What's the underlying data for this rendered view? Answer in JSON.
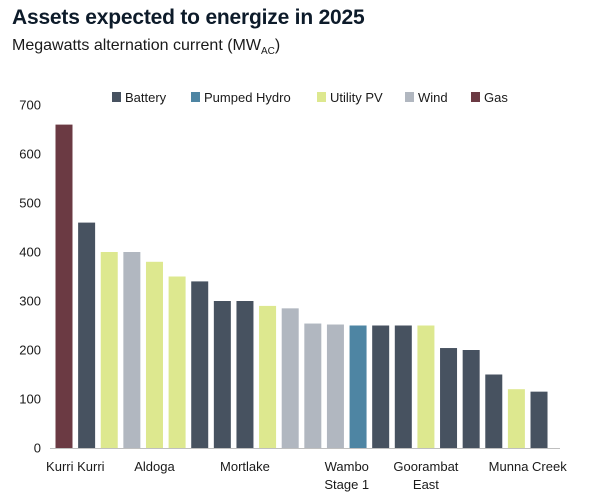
{
  "title": "Assets expected to energize in 2025",
  "subtitle_main": "Megawatts alternation current (MW",
  "subtitle_sub": "AC",
  "subtitle_end": ")",
  "colors": {
    "Battery": "#475260",
    "Pumped Hydro": "#4e85a3",
    "Utility PV": "#dde88f",
    "Wind": "#b1b7c0",
    "Gas": "#6b3a43"
  },
  "chart_data": {
    "type": "bar",
    "title": "Assets expected to energize in 2025",
    "subtitle": "Megawatts alternation current (MWAC)",
    "ylim": [
      0,
      700
    ],
    "yticks": [
      0,
      100,
      200,
      300,
      400,
      500,
      600,
      700
    ],
    "grid": false,
    "legend_position": "top",
    "legend": [
      "Battery",
      "Pumped Hydro",
      "Utility PV",
      "Wind",
      "Gas"
    ],
    "bars": [
      {
        "value": 660,
        "type": "Gas"
      },
      {
        "value": 460,
        "type": "Battery"
      },
      {
        "value": 400,
        "type": "Utility PV"
      },
      {
        "value": 400,
        "type": "Wind"
      },
      {
        "value": 380,
        "type": "Utility PV"
      },
      {
        "value": 350,
        "type": "Utility PV"
      },
      {
        "value": 340,
        "type": "Battery"
      },
      {
        "value": 300,
        "type": "Battery"
      },
      {
        "value": 300,
        "type": "Battery"
      },
      {
        "value": 290,
        "type": "Utility PV"
      },
      {
        "value": 285,
        "type": "Wind"
      },
      {
        "value": 254,
        "type": "Wind"
      },
      {
        "value": 252,
        "type": "Wind"
      },
      {
        "value": 250,
        "type": "Pumped Hydro"
      },
      {
        "value": 250,
        "type": "Battery"
      },
      {
        "value": 250,
        "type": "Battery"
      },
      {
        "value": 250,
        "type": "Utility PV"
      },
      {
        "value": 204,
        "type": "Battery"
      },
      {
        "value": 200,
        "type": "Battery"
      },
      {
        "value": 150,
        "type": "Battery"
      },
      {
        "value": 120,
        "type": "Utility PV"
      },
      {
        "value": 115,
        "type": "Battery"
      }
    ],
    "category_labels": [
      {
        "bar": 0.5,
        "lines": [
          "Kurri Kurri"
        ]
      },
      {
        "bar": 4,
        "lines": [
          "Aldoga"
        ]
      },
      {
        "bar": 8,
        "lines": [
          "Mortlake"
        ]
      },
      {
        "bar": 12.5,
        "lines": [
          "Wambo",
          "Stage 1"
        ]
      },
      {
        "bar": 16,
        "lines": [
          "Goorambat",
          "East"
        ]
      },
      {
        "bar": 20.5,
        "lines": [
          "Munna Creek"
        ]
      }
    ]
  }
}
